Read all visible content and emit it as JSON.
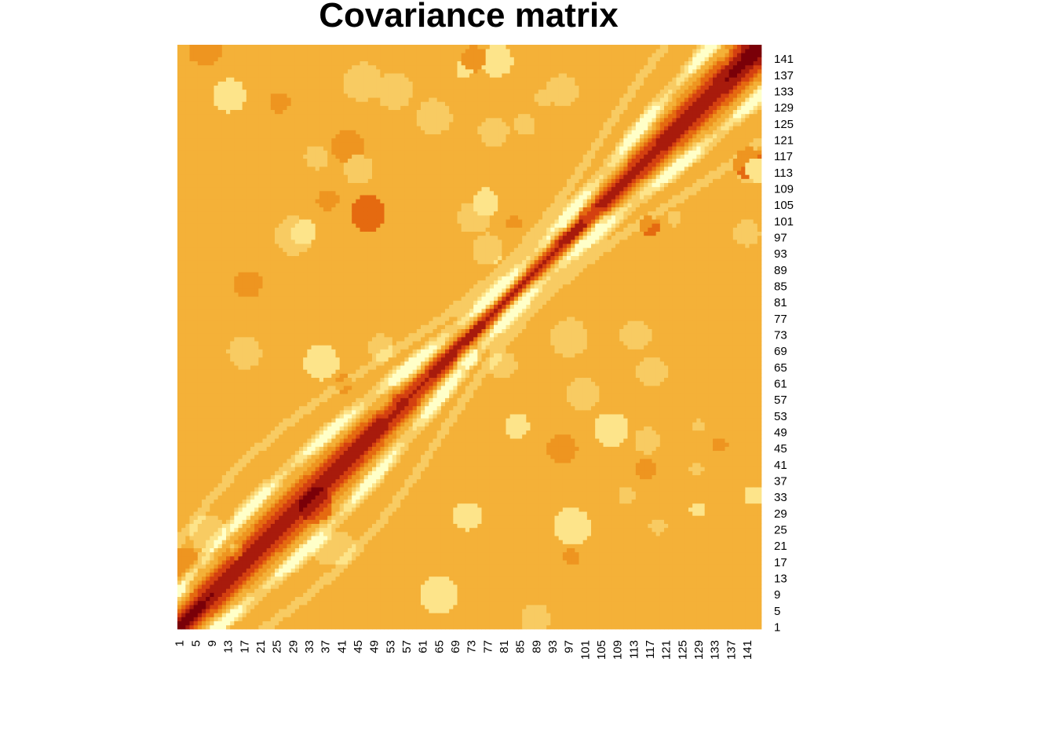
{
  "chart_data": {
    "type": "heatmap",
    "title": "Covariance matrix",
    "xlabel": "",
    "ylabel": "",
    "n": 144,
    "x_tick_labels": [
      "1",
      "5",
      "9",
      "13",
      "17",
      "21",
      "25",
      "29",
      "33",
      "37",
      "41",
      "45",
      "49",
      "53",
      "57",
      "61",
      "65",
      "69",
      "73",
      "77",
      "81",
      "85",
      "89",
      "93",
      "97",
      "101",
      "105",
      "109",
      "113",
      "117",
      "121",
      "125",
      "129",
      "133",
      "137",
      "141"
    ],
    "y_tick_labels": [
      "1",
      "5",
      "9",
      "13",
      "17",
      "21",
      "25",
      "29",
      "33",
      "37",
      "41",
      "45",
      "49",
      "53",
      "57",
      "61",
      "65",
      "69",
      "73",
      "77",
      "81",
      "85",
      "89",
      "93",
      "97",
      "101",
      "105",
      "109",
      "113",
      "117",
      "121",
      "125",
      "129",
      "133",
      "137",
      "141"
    ],
    "x_tick_positions": [
      1,
      5,
      9,
      13,
      17,
      21,
      25,
      29,
      33,
      37,
      41,
      45,
      49,
      53,
      57,
      61,
      65,
      69,
      73,
      77,
      81,
      85,
      89,
      93,
      97,
      101,
      105,
      109,
      113,
      117,
      121,
      125,
      129,
      133,
      137,
      141
    ],
    "y_tick_positions": [
      1,
      5,
      9,
      13,
      17,
      21,
      25,
      29,
      33,
      37,
      41,
      45,
      49,
      53,
      57,
      61,
      65,
      69,
      73,
      77,
      81,
      85,
      89,
      93,
      97,
      101,
      105,
      109,
      113,
      117,
      121,
      125,
      129,
      133,
      137,
      141
    ],
    "color_scale": [
      "#ffffc8",
      "#fde48a",
      "#f8cb62",
      "#f4b138",
      "#ee9520",
      "#e56a10",
      "#d44010",
      "#a81b0c",
      "#7a0008"
    ],
    "background_level_color": "#f3ae35",
    "structure": "banded: strongly positive along the main diagonal (darkest at both ends), flanked by pale negative ridges and a speckled background"
  }
}
